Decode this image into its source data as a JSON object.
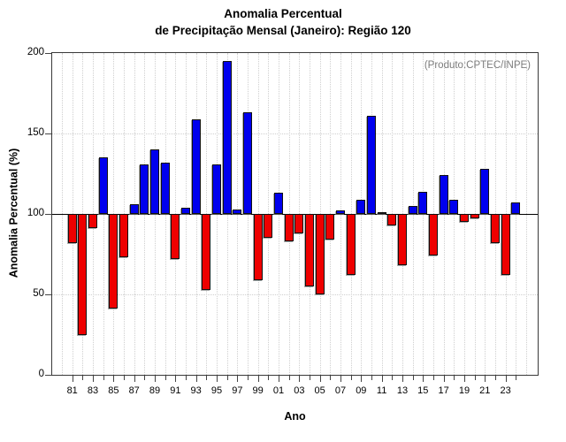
{
  "title": {
    "line1": "Anomalia Percentual",
    "line2": "de Precipitação Mensal (Janeiro): Região 120"
  },
  "annotation": "(Produto:CPTEC/INPE)",
  "chart_data": {
    "type": "bar",
    "title": "Anomalia Percentual de Precipitação Mensal (Janeiro): Região 120",
    "xlabel": "Ano",
    "ylabel": "Anomalia Percentual (%)",
    "ylim": [
      0,
      200
    ],
    "yticks": [
      0,
      50,
      100,
      150,
      200
    ],
    "baseline": 100,
    "grid": true,
    "legend_position": "none",
    "colors": {
      "above_baseline": "#0000ee",
      "below_baseline": "#ee0000",
      "annotation_gray": "#7c7c7c"
    },
    "categories": [
      "81",
      "82",
      "83",
      "84",
      "85",
      "86",
      "87",
      "88",
      "89",
      "90",
      "91",
      "92",
      "93",
      "94",
      "95",
      "96",
      "97",
      "98",
      "99",
      "00",
      "01",
      "02",
      "03",
      "04",
      "05",
      "06",
      "07",
      "08",
      "09",
      "10",
      "11",
      "12",
      "13",
      "14",
      "15",
      "16",
      "17",
      "18",
      "19",
      "20",
      "21",
      "22",
      "23",
      "24"
    ],
    "values": [
      82,
      25,
      91,
      135,
      41,
      73,
      106,
      131,
      140,
      132,
      72,
      104,
      159,
      53,
      131,
      195,
      103,
      163,
      59,
      85,
      113,
      83,
      88,
      55,
      50,
      84,
      102,
      62,
      109,
      161,
      101,
      93,
      68,
      105,
      114,
      74,
      124,
      109,
      95,
      97,
      128,
      82,
      62,
      107
    ],
    "x_tick_labels_shown": [
      "81",
      "83",
      "85",
      "87",
      "89",
      "91",
      "93",
      "95",
      "97",
      "99",
      "01",
      "03",
      "05",
      "07",
      "09",
      "11",
      "13",
      "15",
      "17",
      "19",
      "21",
      "23"
    ]
  }
}
